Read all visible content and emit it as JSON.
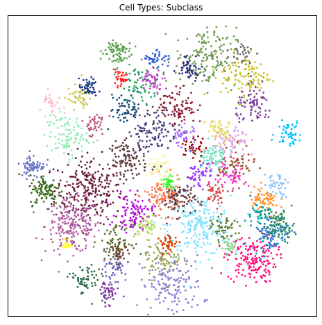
{
  "chart_data": {
    "type": "scatter",
    "title": "Cell Types: Subclass",
    "xlabel": "",
    "ylabel": "",
    "xticks": [],
    "yticks": [],
    "grid": false,
    "legend": "none",
    "embedding": "umap-like 2D",
    "xlim": [
      0,
      1
    ],
    "ylim": [
      0,
      1
    ],
    "clusters": [
      {
        "color": "#6a1b3a",
        "x": 0.26,
        "y": 0.42,
        "spread": 0.055,
        "n": 260
      },
      {
        "color": "#b05ea4",
        "x": 0.21,
        "y": 0.3,
        "spread": 0.045,
        "n": 220
      },
      {
        "color": "#7fe3ff",
        "x": 0.62,
        "y": 0.3,
        "spread": 0.05,
        "n": 220
      },
      {
        "color": "#ff0a78",
        "x": 0.79,
        "y": 0.19,
        "spread": 0.04,
        "n": 170
      },
      {
        "color": "#8b7cd0",
        "x": 0.53,
        "y": 0.1,
        "spread": 0.05,
        "n": 150
      },
      {
        "color": "#5e3c3c",
        "x": 0.39,
        "y": 0.52,
        "spread": 0.03,
        "n": 110
      },
      {
        "color": "#613840",
        "x": 0.55,
        "y": 0.39,
        "spread": 0.028,
        "n": 100
      },
      {
        "color": "#ff7a4a",
        "x": 0.5,
        "y": 0.4,
        "spread": 0.03,
        "n": 100
      },
      {
        "color": "#b400e0",
        "x": 0.41,
        "y": 0.34,
        "spread": 0.03,
        "n": 100
      },
      {
        "color": "#6a994e",
        "x": 0.64,
        "y": 0.86,
        "spread": 0.05,
        "n": 170
      },
      {
        "color": "#c8c020",
        "x": 0.77,
        "y": 0.8,
        "spread": 0.04,
        "n": 110
      },
      {
        "color": "#3a6b1e",
        "x": 0.12,
        "y": 0.42,
        "spread": 0.025,
        "n": 100
      },
      {
        "color": "#6b76c8",
        "x": 0.08,
        "y": 0.5,
        "spread": 0.02,
        "n": 70
      },
      {
        "color": "#1f7acc",
        "x": 0.85,
        "y": 0.28,
        "spread": 0.03,
        "n": 100
      },
      {
        "color": "#2e8b57",
        "x": 0.88,
        "y": 0.3,
        "spread": 0.025,
        "n": 80
      },
      {
        "color": "#8fe8b0",
        "x": 0.19,
        "y": 0.6,
        "spread": 0.035,
        "n": 100
      },
      {
        "color": "#57a04a",
        "x": 0.35,
        "y": 0.88,
        "spread": 0.025,
        "n": 80
      },
      {
        "color": "#c9c65a",
        "x": 0.23,
        "y": 0.73,
        "spread": 0.02,
        "n": 50
      },
      {
        "color": "#1e3a8a",
        "x": 0.26,
        "y": 0.76,
        "spread": 0.015,
        "n": 50
      },
      {
        "color": "#8a1c2e",
        "x": 0.55,
        "y": 0.7,
        "spread": 0.03,
        "n": 90
      },
      {
        "color": "#4b3b7a",
        "x": 0.47,
        "y": 0.62,
        "spread": 0.04,
        "n": 120
      },
      {
        "color": "#6fe0c0",
        "x": 0.66,
        "y": 0.53,
        "spread": 0.025,
        "n": 80
      },
      {
        "color": "#9aa050",
        "x": 0.5,
        "y": 0.19,
        "spread": 0.03,
        "n": 80
      },
      {
        "color": "#e0a0e0",
        "x": 0.72,
        "y": 0.58,
        "spread": 0.03,
        "n": 80
      },
      {
        "color": "#7b3fa0",
        "x": 0.8,
        "y": 0.7,
        "spread": 0.03,
        "n": 80
      },
      {
        "color": "#ff8c1a",
        "x": 0.83,
        "y": 0.38,
        "spread": 0.025,
        "n": 70
      },
      {
        "color": "#00c0ff",
        "x": 0.91,
        "y": 0.61,
        "spread": 0.02,
        "n": 50
      },
      {
        "color": "#33ff33",
        "x": 0.52,
        "y": 0.45,
        "spread": 0.012,
        "n": 40
      },
      {
        "color": "#556b2f",
        "x": 0.35,
        "y": 0.25,
        "spread": 0.025,
        "n": 60
      },
      {
        "color": "#b2e05a",
        "x": 0.45,
        "y": 0.3,
        "spread": 0.02,
        "n": 50
      },
      {
        "color": "#7a3aa0",
        "x": 0.32,
        "y": 0.08,
        "spread": 0.02,
        "n": 50
      },
      {
        "color": "#2f6b4a",
        "x": 0.25,
        "y": 0.12,
        "spread": 0.025,
        "n": 60
      },
      {
        "color": "#15487a",
        "x": 0.38,
        "y": 0.69,
        "spread": 0.025,
        "n": 60
      },
      {
        "color": "#ff33cc",
        "x": 0.72,
        "y": 0.47,
        "spread": 0.025,
        "n": 60
      },
      {
        "color": "#a0522d",
        "x": 0.74,
        "y": 0.5,
        "spread": 0.03,
        "n": 60
      },
      {
        "color": "#e8e060",
        "x": 0.68,
        "y": 0.62,
        "spread": 0.02,
        "n": 50
      },
      {
        "color": "#9b30ff",
        "x": 0.62,
        "y": 0.47,
        "spread": 0.02,
        "n": 50
      },
      {
        "color": "#5a7d2a",
        "x": 0.7,
        "y": 0.29,
        "spread": 0.02,
        "n": 50
      },
      {
        "color": "#f5f5a0",
        "x": 0.49,
        "y": 0.49,
        "spread": 0.02,
        "n": 50
      },
      {
        "color": "#2c2c80",
        "x": 0.59,
        "y": 0.83,
        "spread": 0.02,
        "n": 50
      },
      {
        "color": "#d83a00",
        "x": 0.52,
        "y": 0.24,
        "spread": 0.015,
        "n": 40
      },
      {
        "color": "#20a060",
        "x": 0.43,
        "y": 0.77,
        "spread": 0.03,
        "n": 60
      },
      {
        "color": "#c040c0",
        "x": 0.47,
        "y": 0.79,
        "spread": 0.02,
        "n": 50
      },
      {
        "color": "#ffff33",
        "x": 0.19,
        "y": 0.24,
        "spread": 0.008,
        "n": 20
      },
      {
        "color": "#2a5bd7",
        "x": 0.48,
        "y": 0.86,
        "spread": 0.02,
        "n": 40
      },
      {
        "color": "#990000",
        "x": 0.6,
        "y": 0.56,
        "spread": 0.02,
        "n": 40
      },
      {
        "color": "#666666",
        "x": 0.76,
        "y": 0.88,
        "spread": 0.02,
        "n": 30
      },
      {
        "color": "#80c0ff",
        "x": 0.87,
        "y": 0.44,
        "spread": 0.02,
        "n": 40
      },
      {
        "color": "#00a0a0",
        "x": 0.81,
        "y": 0.34,
        "spread": 0.02,
        "n": 40
      },
      {
        "color": "#bb5577",
        "x": 0.28,
        "y": 0.64,
        "spread": 0.02,
        "n": 40
      },
      {
        "color": "#6060c0",
        "x": 0.34,
        "y": 0.16,
        "spread": 0.02,
        "n": 40
      },
      {
        "color": "#ffb6c1",
        "x": 0.14,
        "y": 0.7,
        "spread": 0.02,
        "n": 30
      },
      {
        "color": "#ff2020",
        "x": 0.36,
        "y": 0.79,
        "spread": 0.012,
        "n": 30
      },
      {
        "color": "#a86cff",
        "x": 0.57,
        "y": 0.6,
        "spread": 0.02,
        "n": 40
      },
      {
        "color": "#6b4226",
        "x": 0.36,
        "y": 0.21,
        "spread": 0.015,
        "n": 40
      },
      {
        "color": "#84d084",
        "x": 0.72,
        "y": 0.23,
        "spread": 0.015,
        "n": 30
      },
      {
        "color": "#d04848",
        "x": 0.67,
        "y": 0.41,
        "spread": 0.02,
        "n": 40
      }
    ]
  }
}
